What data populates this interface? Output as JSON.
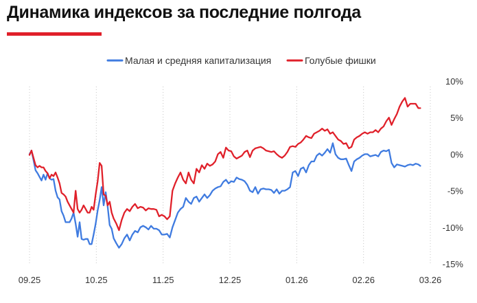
{
  "title": "Динамика индексов за последние полгода",
  "accent_color": "#e0202a",
  "chart_data": {
    "type": "line",
    "title": "Динамика индексов за последние полгода",
    "xlabel": "",
    "ylabel": "",
    "x_tick_labels": [
      "09.25",
      "10.25",
      "11.25",
      "12.25",
      "01.26",
      "02.26",
      "03.26"
    ],
    "y_tick_labels": [
      "10%",
      "5%",
      "0%",
      "-5%",
      "-10%",
      "-15%"
    ],
    "y_ticks": [
      10,
      5,
      0,
      -5,
      -10,
      -15
    ],
    "ylim": [
      -15,
      10
    ],
    "xlim": [
      0,
      6
    ],
    "grid": "vertical dotted",
    "legend_position": "top",
    "series": [
      {
        "name": "Малая и средняя капитализация",
        "color": "#3f7be0",
        "points": [
          [
            0.0,
            0.0
          ],
          [
            0.03,
            0.5
          ],
          [
            0.06,
            -0.8
          ],
          [
            0.09,
            -2.2
          ],
          [
            0.12,
            -2.6
          ],
          [
            0.15,
            -3.1
          ],
          [
            0.18,
            -3.6
          ],
          [
            0.21,
            -2.8
          ],
          [
            0.24,
            -3.5
          ],
          [
            0.27,
            -2.6
          ],
          [
            0.3,
            -3.3
          ],
          [
            0.33,
            -3.5
          ],
          [
            0.36,
            -3.4
          ],
          [
            0.39,
            -5.0
          ],
          [
            0.42,
            -5.9
          ],
          [
            0.45,
            -6.2
          ],
          [
            0.48,
            -7.8
          ],
          [
            0.51,
            -8.4
          ],
          [
            0.54,
            -9.3
          ],
          [
            0.57,
            -9.3
          ],
          [
            0.6,
            -9.3
          ],
          [
            0.63,
            -8.8
          ],
          [
            0.66,
            -8.0
          ],
          [
            0.69,
            -9.5
          ],
          [
            0.72,
            -11.3
          ],
          [
            0.75,
            -9.3
          ],
          [
            0.78,
            -11.6
          ],
          [
            0.81,
            -11.7
          ],
          [
            0.84,
            -11.6
          ],
          [
            0.87,
            -11.6
          ],
          [
            0.9,
            -12.3
          ],
          [
            0.93,
            -12.3
          ],
          [
            0.96,
            -11.0
          ],
          [
            0.99,
            -9.5
          ],
          [
            1.02,
            -7.7
          ],
          [
            1.05,
            -6.3
          ],
          [
            1.08,
            -4.5
          ],
          [
            1.11,
            -7.0
          ],
          [
            1.14,
            -5.2
          ],
          [
            1.17,
            -7.2
          ],
          [
            1.2,
            -9.7
          ],
          [
            1.23,
            -10.2
          ],
          [
            1.26,
            -11.5
          ],
          [
            1.3,
            -12.2
          ],
          [
            1.34,
            -12.8
          ],
          [
            1.38,
            -12.3
          ],
          [
            1.42,
            -11.5
          ],
          [
            1.46,
            -11.0
          ],
          [
            1.5,
            -11.8
          ],
          [
            1.54,
            -11.0
          ],
          [
            1.58,
            -10.5
          ],
          [
            1.62,
            -10.7
          ],
          [
            1.66,
            -10.0
          ],
          [
            1.7,
            -9.8
          ],
          [
            1.74,
            -10.0
          ],
          [
            1.78,
            -10.3
          ],
          [
            1.82,
            -9.8
          ],
          [
            1.86,
            -10.2
          ],
          [
            1.9,
            -10.2
          ],
          [
            1.94,
            -10.4
          ],
          [
            1.98,
            -11.0
          ],
          [
            2.02,
            -11.0
          ],
          [
            2.06,
            -10.9
          ],
          [
            2.1,
            -11.4
          ],
          [
            2.14,
            -10.0
          ],
          [
            2.18,
            -9.0
          ],
          [
            2.22,
            -8.0
          ],
          [
            2.26,
            -7.5
          ],
          [
            2.3,
            -7.2
          ],
          [
            2.34,
            -6.0
          ],
          [
            2.38,
            -6.5
          ],
          [
            2.42,
            -6.8
          ],
          [
            2.46,
            -6.0
          ],
          [
            2.5,
            -5.8
          ],
          [
            2.54,
            -6.5
          ],
          [
            2.58,
            -6.0
          ],
          [
            2.62,
            -5.5
          ],
          [
            2.66,
            -6.0
          ],
          [
            2.7,
            -5.6
          ],
          [
            2.74,
            -5.0
          ],
          [
            2.78,
            -4.7
          ],
          [
            2.82,
            -4.5
          ],
          [
            2.86,
            -4.4
          ],
          [
            2.9,
            -3.8
          ],
          [
            2.94,
            -3.5
          ],
          [
            2.98,
            -4.0
          ],
          [
            3.02,
            -3.7
          ],
          [
            3.06,
            -3.8
          ],
          [
            3.1,
            -3.2
          ],
          [
            3.14,
            -3.4
          ],
          [
            3.18,
            -3.5
          ],
          [
            3.22,
            -3.7
          ],
          [
            3.26,
            -4.2
          ],
          [
            3.3,
            -5.0
          ],
          [
            3.34,
            -5.2
          ],
          [
            3.38,
            -4.5
          ],
          [
            3.42,
            -5.4
          ],
          [
            3.46,
            -4.8
          ],
          [
            3.5,
            -4.7
          ],
          [
            3.54,
            -4.8
          ],
          [
            3.58,
            -4.8
          ],
          [
            3.62,
            -4.9
          ],
          [
            3.66,
            -5.3
          ],
          [
            3.7,
            -4.8
          ],
          [
            3.74,
            -5.4
          ],
          [
            3.78,
            -5.0
          ],
          [
            3.82,
            -5.0
          ],
          [
            3.86,
            -4.8
          ],
          [
            3.9,
            -4.5
          ],
          [
            3.94,
            -2.5
          ],
          [
            3.98,
            -2.3
          ],
          [
            4.02,
            -3.0
          ],
          [
            4.06,
            -2.0
          ],
          [
            4.1,
            -1.8
          ],
          [
            4.14,
            -2.5
          ],
          [
            4.18,
            -1.5
          ],
          [
            4.22,
            -1.0
          ],
          [
            4.26,
            -1.0
          ],
          [
            4.3,
            -0.2
          ],
          [
            4.34,
            0.1
          ],
          [
            4.38,
            -0.2
          ],
          [
            4.42,
            0.2
          ],
          [
            4.46,
            0.7
          ],
          [
            4.5,
            0.2
          ],
          [
            4.54,
            1.5
          ],
          [
            4.58,
            0.0
          ],
          [
            4.62,
            -0.5
          ],
          [
            4.66,
            -0.7
          ],
          [
            4.7,
            -0.7
          ],
          [
            4.74,
            -0.6
          ],
          [
            4.78,
            -1.5
          ],
          [
            4.82,
            -2.3
          ],
          [
            4.86,
            -1.0
          ],
          [
            4.9,
            -0.7
          ],
          [
            4.94,
            -0.5
          ],
          [
            4.98,
            -0.2
          ],
          [
            5.02,
            0.0
          ],
          [
            5.06,
            0.0
          ],
          [
            5.1,
            -0.3
          ],
          [
            5.14,
            -0.2
          ],
          [
            5.18,
            -0.1
          ],
          [
            5.22,
            -0.3
          ],
          [
            5.26,
            0.3
          ],
          [
            5.3,
            0.5
          ],
          [
            5.34,
            0.4
          ],
          [
            5.38,
            0.6
          ],
          [
            5.42,
            -1.2
          ],
          [
            5.46,
            -1.8
          ],
          [
            5.5,
            -1.4
          ],
          [
            5.54,
            -1.5
          ],
          [
            5.58,
            -1.6
          ],
          [
            5.62,
            -1.7
          ],
          [
            5.66,
            -1.5
          ],
          [
            5.7,
            -1.4
          ],
          [
            5.74,
            -1.5
          ],
          [
            5.78,
            -1.3
          ],
          [
            5.82,
            -1.4
          ],
          [
            5.85,
            -1.6
          ]
        ]
      },
      {
        "name": "Голубые фишки",
        "color": "#e0202a",
        "points": [
          [
            0.0,
            -0.1
          ],
          [
            0.03,
            0.5
          ],
          [
            0.06,
            -0.5
          ],
          [
            0.09,
            -1.5
          ],
          [
            0.12,
            -1.8
          ],
          [
            0.15,
            -1.6
          ],
          [
            0.18,
            -1.8
          ],
          [
            0.21,
            -1.8
          ],
          [
            0.24,
            -2.3
          ],
          [
            0.27,
            -2.6
          ],
          [
            0.3,
            -3.3
          ],
          [
            0.33,
            -2.8
          ],
          [
            0.36,
            -3.0
          ],
          [
            0.39,
            -2.5
          ],
          [
            0.42,
            -3.2
          ],
          [
            0.45,
            -4.0
          ],
          [
            0.48,
            -5.3
          ],
          [
            0.51,
            -5.5
          ],
          [
            0.54,
            -5.8
          ],
          [
            0.57,
            -6.5
          ],
          [
            0.6,
            -7.0
          ],
          [
            0.63,
            -7.5
          ],
          [
            0.66,
            -8.0
          ],
          [
            0.69,
            -5.0
          ],
          [
            0.72,
            -7.5
          ],
          [
            0.75,
            -8.0
          ],
          [
            0.78,
            -7.6
          ],
          [
            0.81,
            -7.0
          ],
          [
            0.84,
            -7.5
          ],
          [
            0.87,
            -8.0
          ],
          [
            0.9,
            -8.0
          ],
          [
            0.93,
            -7.2
          ],
          [
            0.96,
            -7.6
          ],
          [
            0.99,
            -5.5
          ],
          [
            1.02,
            -3.7
          ],
          [
            1.05,
            -1.2
          ],
          [
            1.08,
            -1.6
          ],
          [
            1.11,
            -5.5
          ],
          [
            1.14,
            -5.7
          ],
          [
            1.17,
            -7.0
          ],
          [
            1.2,
            -6.5
          ],
          [
            1.23,
            -8.0
          ],
          [
            1.26,
            -8.8
          ],
          [
            1.3,
            -9.5
          ],
          [
            1.34,
            -10.4
          ],
          [
            1.38,
            -9.0
          ],
          [
            1.42,
            -8.0
          ],
          [
            1.46,
            -7.5
          ],
          [
            1.5,
            -7.8
          ],
          [
            1.54,
            -7.2
          ],
          [
            1.58,
            -6.8
          ],
          [
            1.62,
            -7.4
          ],
          [
            1.66,
            -7.2
          ],
          [
            1.7,
            -7.3
          ],
          [
            1.74,
            -7.7
          ],
          [
            1.78,
            -7.4
          ],
          [
            1.82,
            -7.5
          ],
          [
            1.86,
            -7.5
          ],
          [
            1.9,
            -7.6
          ],
          [
            1.94,
            -8.5
          ],
          [
            1.98,
            -8.3
          ],
          [
            2.02,
            -8.5
          ],
          [
            2.06,
            -8.9
          ],
          [
            2.1,
            -8.5
          ],
          [
            2.14,
            -5.0
          ],
          [
            2.18,
            -4.0
          ],
          [
            2.22,
            -3.2
          ],
          [
            2.26,
            -2.5
          ],
          [
            2.3,
            -3.5
          ],
          [
            2.34,
            -4.0
          ],
          [
            2.38,
            -2.5
          ],
          [
            2.42,
            -3.5
          ],
          [
            2.46,
            -4.0
          ],
          [
            2.5,
            -2.0
          ],
          [
            2.54,
            -2.5
          ],
          [
            2.58,
            -1.5
          ],
          [
            2.62,
            -2.0
          ],
          [
            2.66,
            -1.3
          ],
          [
            2.7,
            -1.6
          ],
          [
            2.74,
            -1.4
          ],
          [
            2.78,
            -1.0
          ],
          [
            2.82,
            0.0
          ],
          [
            2.86,
            0.3
          ],
          [
            2.9,
            -0.5
          ],
          [
            2.94,
            0.9
          ],
          [
            2.98,
            0.5
          ],
          [
            3.02,
            0.4
          ],
          [
            3.06,
            -0.3
          ],
          [
            3.1,
            -0.6
          ],
          [
            3.14,
            -0.4
          ],
          [
            3.18,
            -0.2
          ],
          [
            3.22,
            0.3
          ],
          [
            3.26,
            0.5
          ],
          [
            3.3,
            -0.4
          ],
          [
            3.34,
            0.5
          ],
          [
            3.38,
            0.8
          ],
          [
            3.42,
            0.9
          ],
          [
            3.46,
            1.0
          ],
          [
            3.5,
            0.8
          ],
          [
            3.54,
            0.5
          ],
          [
            3.58,
            0.4
          ],
          [
            3.62,
            0.3
          ],
          [
            3.66,
            0.4
          ],
          [
            3.7,
            0.0
          ],
          [
            3.74,
            -0.3
          ],
          [
            3.78,
            -0.5
          ],
          [
            3.82,
            -0.2
          ],
          [
            3.86,
            0.3
          ],
          [
            3.9,
            1.0
          ],
          [
            3.94,
            1.1
          ],
          [
            3.98,
            1.0
          ],
          [
            4.02,
            1.4
          ],
          [
            4.06,
            1.6
          ],
          [
            4.1,
            2.0
          ],
          [
            4.14,
            2.5
          ],
          [
            4.18,
            2.3
          ],
          [
            4.22,
            2.2
          ],
          [
            4.26,
            2.8
          ],
          [
            4.3,
            3.0
          ],
          [
            4.34,
            3.2
          ],
          [
            4.38,
            3.5
          ],
          [
            4.42,
            3.2
          ],
          [
            4.46,
            3.4
          ],
          [
            4.5,
            2.8
          ],
          [
            4.54,
            3.0
          ],
          [
            4.58,
            2.5
          ],
          [
            4.62,
            2.0
          ],
          [
            4.66,
            1.8
          ],
          [
            4.7,
            1.4
          ],
          [
            4.74,
            1.5
          ],
          [
            4.78,
            0.8
          ],
          [
            4.82,
            1.0
          ],
          [
            4.86,
            2.0
          ],
          [
            4.9,
            2.3
          ],
          [
            4.94,
            2.5
          ],
          [
            4.98,
            2.8
          ],
          [
            5.02,
            3.0
          ],
          [
            5.06,
            2.8
          ],
          [
            5.1,
            3.0
          ],
          [
            5.14,
            3.0
          ],
          [
            5.18,
            3.3
          ],
          [
            5.22,
            3.0
          ],
          [
            5.26,
            3.5
          ],
          [
            5.3,
            3.8
          ],
          [
            5.34,
            4.5
          ],
          [
            5.38,
            5.0
          ],
          [
            5.42,
            4.0
          ],
          [
            5.46,
            4.8
          ],
          [
            5.5,
            5.5
          ],
          [
            5.54,
            6.5
          ],
          [
            5.58,
            7.2
          ],
          [
            5.62,
            7.7
          ],
          [
            5.66,
            6.5
          ],
          [
            5.7,
            6.9
          ],
          [
            5.74,
            6.9
          ],
          [
            5.78,
            6.9
          ],
          [
            5.82,
            6.3
          ],
          [
            5.85,
            6.3
          ]
        ]
      }
    ]
  }
}
